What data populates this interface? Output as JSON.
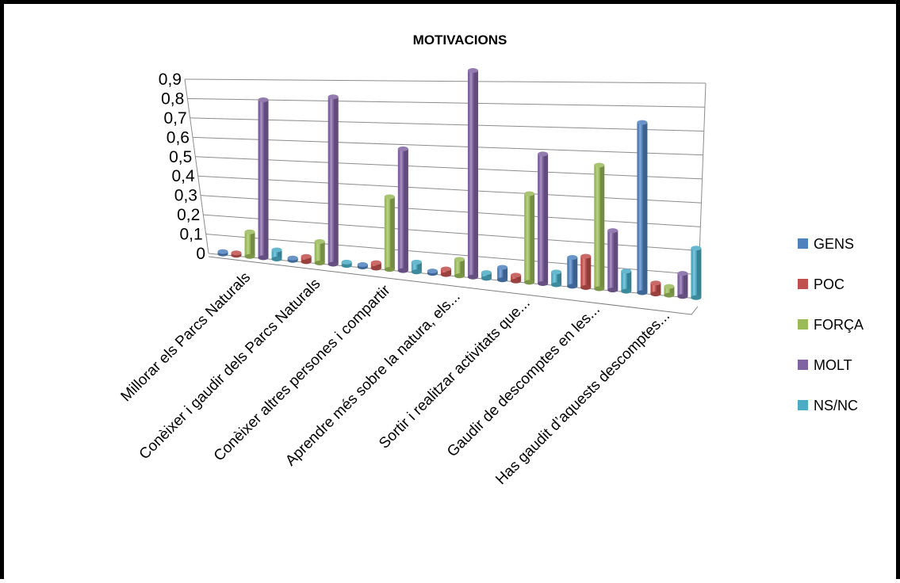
{
  "chart_data": {
    "type": "bar",
    "title": "MOTIVACIONS",
    "categories": [
      "Millorar els Parcs Naturals",
      "Conèixer i gaudir dels Parcs Naturals",
      "Conèixer altres persones i compartir",
      "Aprendre més sobre la natura, els...",
      "Sortir i realitzar activitats que...",
      "Gaudir de descomptes en les...",
      "Has gaudit d’aquests descomptes..."
    ],
    "series": [
      {
        "name": "GENS",
        "color": "#4F81BD",
        "values": [
          0.0,
          0.0,
          0.0,
          0.0,
          0.06,
          0.13,
          0.73
        ]
      },
      {
        "name": "POC",
        "color": "#C0504D",
        "values": [
          0.0,
          0.03,
          0.03,
          0.03,
          0.03,
          0.14,
          0.05
        ]
      },
      {
        "name": "FORÇA",
        "color": "#9BBB59",
        "values": [
          0.13,
          0.11,
          0.35,
          0.08,
          0.4,
          0.54,
          0.04
        ]
      },
      {
        "name": "MOLT",
        "color": "#8064A2",
        "values": [
          0.8,
          0.82,
          0.58,
          0.95,
          0.58,
          0.26,
          0.1
        ]
      },
      {
        "name": "NS/NC",
        "color": "#4BACC6",
        "values": [
          0.05,
          0.02,
          0.05,
          0.03,
          0.06,
          0.09,
          0.21
        ]
      }
    ],
    "yticks": [
      "0",
      "0,1",
      "0,2",
      "0,3",
      "0,4",
      "0,5",
      "0,6",
      "0,7",
      "0,8",
      "0,9"
    ],
    "ylim": [
      0,
      0.9
    ],
    "grid": true,
    "legend_position": "right"
  }
}
